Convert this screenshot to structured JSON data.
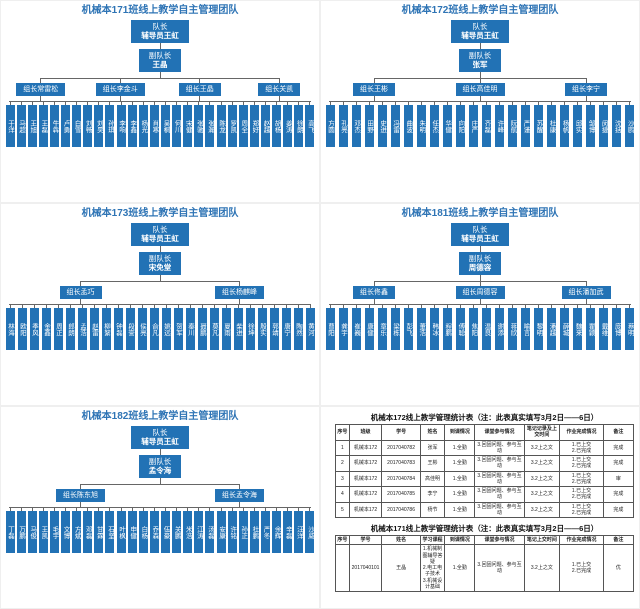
{
  "colors": {
    "box_blue": "#2272B5",
    "title_blue": "#2E74B5",
    "line_gray": "#666666"
  },
  "panels": [
    {
      "type": "org",
      "title": "机械本171班线上教学自主管理团队",
      "leader_role": "队长",
      "leader_name": "辅导员王虹",
      "deputy_role": "副队长",
      "deputy_name": "王晶",
      "groups": [
        "组长常雷松",
        "组长李金斗",
        "组长王晶",
        "组长关凯"
      ],
      "members": [
        "于洋",
        "马超",
        "王旭",
        "王磊",
        "牛犇",
        "卢勇",
        "白雪",
        "刘畅",
        "刘昊",
        "孙琪",
        "李响",
        "李鑫",
        "杨光",
        "肖寒",
        "吴桐",
        "何川",
        "宋健",
        "张驰",
        "张瀚",
        "陈龙",
        "罗凯",
        "周全",
        "郑好",
        "赵越",
        "胡杨",
        "姜涛",
        "徐朗",
        "高飞"
      ]
    },
    {
      "type": "org",
      "title": "机械本172班线上教学自主管理团队",
      "leader_role": "队长",
      "leader_name": "辅导员王虹",
      "deputy_role": "副队长",
      "deputy_name": "张军",
      "groups": [
        "组长王彬",
        "组长高佳明",
        "组长李宁"
      ],
      "members": [
        "方圆",
        "孔亮",
        "邓杰",
        "田野",
        "史进",
        "冯雷",
        "曲波",
        "朱明",
        "任杰",
        "华健",
        "向阳",
        "庄严",
        "齐磊",
        "许峰",
        "阮航",
        "严谨",
        "苏醒",
        "杜康",
        "杨帆",
        "邱实",
        "邹博",
        "闵捷",
        "沈括",
        "沙鸥"
      ]
    },
    {
      "type": "org",
      "title": "机械本173班线上教学自主管理团队",
      "leader_role": "队长",
      "leader_name": "辅导员王虹",
      "deputy_role": "副队长",
      "deputy_name": "宋免堂",
      "groups": [
        "组长孟巧",
        "组长杨麒峰"
      ],
      "members": [
        "林海",
        "欧阳",
        "季风",
        "金鑫",
        "周正",
        "郎朗",
        "孟浩",
        "赵雷",
        "柳絮",
        "钟磊",
        "段誉",
        "侯亮",
        "俞凡",
        "姚远",
        "贺军",
        "秦川",
        "聂鹏",
        "莫凡",
        "夏雨",
        "柴进",
        "徐坤",
        "殷实",
        "郭靖",
        "唐宁",
        "陶然",
        "黄河"
      ]
    },
    {
      "type": "org",
      "title": "机械本181班线上教学自主管理团队",
      "leader_role": "队长",
      "leader_name": "辅导员王虹",
      "deputy_role": "副队长",
      "deputy_name": "周德容",
      "groups": [
        "组长佟鑫",
        "组长周德容",
        "组长潘加武"
      ],
      "members": [
        "曹阳",
        "龚宇",
        "崔巍",
        "康健",
        "章乐",
        "梁栋",
        "彭飞",
        "董浩",
        "韩冰",
        "程鹏",
        "傅聪",
        "焦阳",
        "温良",
        "谢添",
        "蒋欣",
        "喻言",
        "黎明",
        "潘越",
        "薛城",
        "魏来",
        "瞿颖",
        "戴维",
        "庞博",
        "蔡明"
      ]
    },
    {
      "type": "org",
      "title": "机械本182班线上教学自主管理团队",
      "leader_role": "队长",
      "leader_name": "辅导员王虹",
      "deputy_role": "副队长",
      "deputy_name": "孟令海",
      "groups": [
        "组长陈东旭",
        "组长孟令海"
      ],
      "members": [
        "丁磊",
        "万鹏",
        "马俊",
        "王凯",
        "毛宇",
        "文博",
        "方斌",
        "邓磊",
        "甘霖",
        "石坚",
        "叶枫",
        "申健",
        "白杨",
        "乔森",
        "伍豪",
        "关鹏",
        "米浩",
        "江涛",
        "汤磊",
        "安康",
        "许铭",
        "孙正",
        "杜鹏",
        "严冬",
        "余辉",
        "辛磊",
        "汪洋",
        "沙威"
      ]
    },
    {
      "type": "tables",
      "tables": [
        {
          "title": "机械本172线上教学管理统计表（注：此表真实填写3月2日——6日）",
          "headers": [
            "序号",
            "班级",
            "学号",
            "姓名",
            "到课情况",
            "课堂参与情况",
            "笔记记录及上交时间",
            "作业完成情况",
            "备注"
          ],
          "rows": [
            [
              "1",
              "机械本172",
              "2017040782",
              "张军",
              "1.全勤",
              "3.回固问题、参与互动",
              "3.2上之文",
              "1.已上交\n2.已完成",
              "完成"
            ],
            [
              "2",
              "机械本172",
              "2017040783",
              "王彬",
              "1.全勤",
              "3.回固问题、参与互动",
              "3.2上之文",
              "1.已上交\n2.已完成",
              "完成"
            ],
            [
              "3",
              "机械本172",
              "2017040784",
              "高佳明",
              "1.全勤",
              "3.回固问题、参与互动",
              "3.2上之文",
              "1.已上交\n2.已完成",
              "审"
            ],
            [
              "4",
              "机械本172",
              "2017040785",
              "李宁",
              "1.全勤",
              "3.回固问题、参与互动",
              "3.2上之文",
              "1.已上交\n2.已完成",
              "完成"
            ],
            [
              "5",
              "机械本172",
              "2017040786",
              "杨节",
              "1.全勤",
              "3.回固问题、参与互动",
              "3.2上之文",
              "1.已上交\n2.已完成",
              "完成"
            ]
          ]
        },
        {
          "title": "机械本171线上教学管理统计表（注：此表真实填写3月2日——6日）",
          "headers": [
            "序号",
            "学号",
            "姓名",
            "学习课程",
            "到课情况",
            "课堂参与情况",
            "笔记上交时间",
            "作业完成情况",
            "备注"
          ],
          "rows": [
            [
              "",
              "2017040101",
              "王晶",
              "1.机械制图辅导答疑\n2.电工电子技术\n3.机械设计基础",
              "1.全勤",
              "3.回固问题、参与互动",
              "3.2上之文",
              "1.已上交\n2.已完成",
              "优"
            ]
          ]
        }
      ]
    }
  ]
}
